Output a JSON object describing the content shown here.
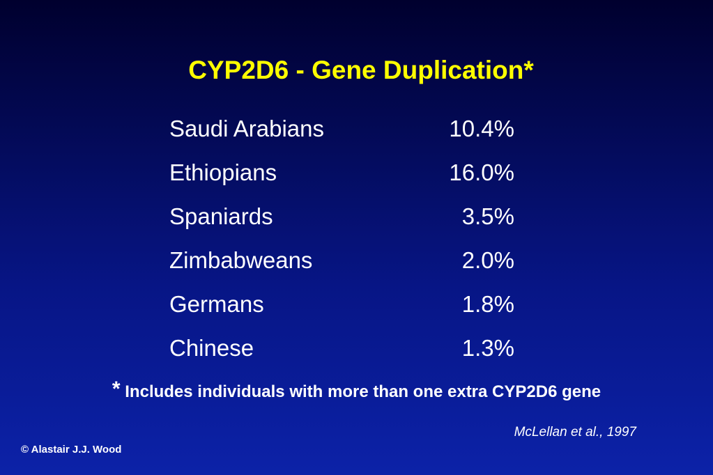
{
  "title": "CYP2D6 - Gene Duplication*",
  "table": {
    "rows": [
      [
        "Saudi Arabians",
        "10.4%"
      ],
      [
        "Ethiopians",
        "16.0%"
      ],
      [
        "Spaniards",
        "3.5%"
      ],
      [
        "Zimbabweans",
        "2.0%"
      ],
      [
        "Germans",
        "1.8%"
      ],
      [
        "Chinese",
        "1.3%"
      ]
    ]
  },
  "footnote": {
    "marker": "*",
    "text": "Includes individuals with more than one extra CYP2D6 gene"
  },
  "citation": "McLellan et al., 1997",
  "copyright": "© Alastair J.J. Wood"
}
